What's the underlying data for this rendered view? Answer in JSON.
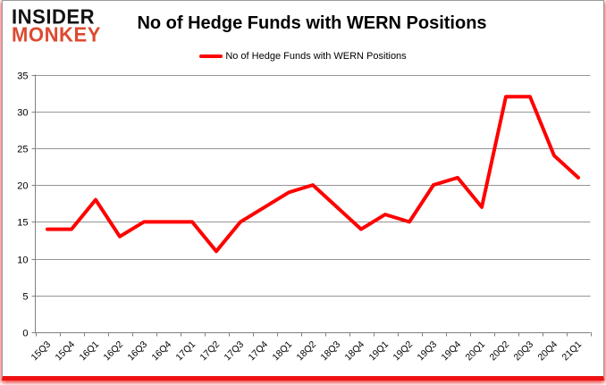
{
  "logo": {
    "line1": "INSIDER",
    "line2": "MONKEY"
  },
  "header": {
    "title": "No of Hedge Funds with WERN Positions"
  },
  "legend": {
    "label": "No of Hedge Funds with WERN Positions"
  },
  "colors": {
    "series_line": "#ff0000",
    "legend_swatch": "#ff0000",
    "logo_accent": "#dd4a30",
    "logo_dark": "#131313",
    "gridline": "#959595",
    "axis": "#808080",
    "tick_label": "#000000",
    "card_bottom_bar": "#ee1111"
  },
  "chart_data": {
    "type": "line",
    "title": "No of Hedge Funds with WERN Positions",
    "categories": [
      "15Q3",
      "15Q4",
      "16Q1",
      "16Q2",
      "16Q3",
      "16Q4",
      "17Q1",
      "17Q2",
      "17Q3",
      "17Q4",
      "18Q1",
      "18Q2",
      "18Q3",
      "18Q4",
      "19Q1",
      "19Q2",
      "19Q3",
      "19Q4",
      "20Q1",
      "20Q2",
      "20Q3",
      "20Q4",
      "21Q1"
    ],
    "series": [
      {
        "name": "No of Hedge Funds with WERN Positions",
        "values": [
          14,
          14,
          18,
          13,
          15,
          15,
          15,
          11,
          15,
          17,
          19,
          20,
          17,
          14,
          16,
          15,
          20,
          21,
          17,
          32,
          32,
          24,
          21
        ]
      }
    ],
    "xlabel": "",
    "ylabel": "",
    "ylim": [
      0,
      35
    ],
    "ytick_step": 5,
    "yticks": [
      0,
      5,
      10,
      15,
      20,
      25,
      30,
      35
    ],
    "grid": true,
    "legend_position": "top-center",
    "x_label_rotation_deg": -45
  }
}
